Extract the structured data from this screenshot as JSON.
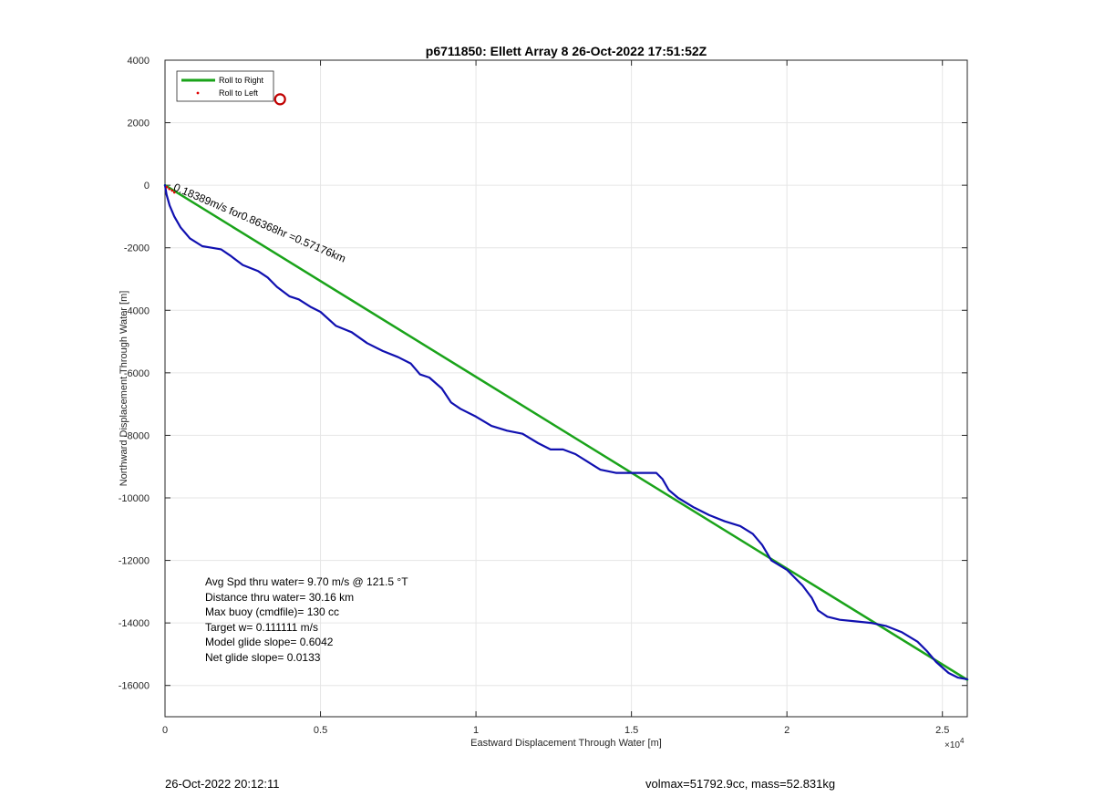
{
  "chart_data": {
    "type": "line",
    "title": "p6711850: Ellett Array 8 26-Oct-2022 17:51:52Z",
    "xlabel": "Eastward Displacement Through Water [m]",
    "ylabel": "Northward Displacement Through Water [m]",
    "xlim": [
      0,
      25800
    ],
    "ylim": [
      -17000,
      4000
    ],
    "x_exponent_label": "×10",
    "x_exponent_power": "4",
    "x_ticks": [
      {
        "value": 0,
        "label": "0"
      },
      {
        "value": 5000,
        "label": "0.5"
      },
      {
        "value": 10000,
        "label": "1"
      },
      {
        "value": 15000,
        "label": "1.5"
      },
      {
        "value": 20000,
        "label": "2"
      },
      {
        "value": 25000,
        "label": "2.5"
      }
    ],
    "y_ticks": [
      {
        "value": 4000,
        "label": "4000"
      },
      {
        "value": 2000,
        "label": "2000"
      },
      {
        "value": 0,
        "label": "0"
      },
      {
        "value": -2000,
        "label": "-2000"
      },
      {
        "value": -4000,
        "label": "-4000"
      },
      {
        "value": -6000,
        "label": "-6000"
      },
      {
        "value": -8000,
        "label": "-8000"
      },
      {
        "value": -10000,
        "label": "-10000"
      },
      {
        "value": -12000,
        "label": "-12000"
      },
      {
        "value": -14000,
        "label": "-14000"
      },
      {
        "value": -16000,
        "label": "-16000"
      }
    ],
    "grid": true,
    "legend_position": "top-left",
    "series": [
      {
        "name": "Roll to Right",
        "color": "#1aa31a",
        "style": "line",
        "x": [
          0,
          25800
        ],
        "y": [
          0,
          -15820
        ]
      },
      {
        "name": "Roll to Left",
        "color": "#e00000",
        "style": "marker",
        "x": [],
        "y": []
      },
      {
        "name": "",
        "color": "#1010b0",
        "style": "line",
        "x": [
          0,
          50,
          150,
          300,
          500,
          800,
          1200,
          1500,
          1800,
          2100,
          2500,
          3000,
          3300,
          3600,
          4000,
          4300,
          4700,
          5000,
          5500,
          6000,
          6500,
          7000,
          7500,
          7900,
          8200,
          8500,
          8900,
          9200,
          9500,
          10000,
          10500,
          11000,
          11500,
          12000,
          12400,
          12800,
          13200,
          13600,
          14000,
          14500,
          15000,
          15500,
          15800,
          16000,
          16200,
          16500,
          17000,
          17500,
          18000,
          18500,
          18900,
          19200,
          19500,
          20000,
          20500,
          20800,
          21000,
          21300,
          21700,
          22200,
          22700,
          23200,
          23700,
          24200,
          24500,
          24800,
          25200,
          25500,
          25800
        ],
        "y": [
          0,
          -300,
          -650,
          -1000,
          -1350,
          -1700,
          -1950,
          -2000,
          -2050,
          -2250,
          -2550,
          -2750,
          -2950,
          -3250,
          -3550,
          -3650,
          -3900,
          -4050,
          -4500,
          -4700,
          -5050,
          -5300,
          -5500,
          -5700,
          -6050,
          -6150,
          -6500,
          -6950,
          -7150,
          -7400,
          -7700,
          -7850,
          -7950,
          -8250,
          -8450,
          -8450,
          -8600,
          -8850,
          -9100,
          -9200,
          -9200,
          -9200,
          -9200,
          -9400,
          -9750,
          -10000,
          -10300,
          -10550,
          -10750,
          -10900,
          -11150,
          -11500,
          -12000,
          -12300,
          -12800,
          -13200,
          -13600,
          -13800,
          -13900,
          -13950,
          -14000,
          -14100,
          -14300,
          -14600,
          -14900,
          -15250,
          -15600,
          -15750,
          -15800
        ]
      }
    ],
    "circle_marker": {
      "x": 3700,
      "y": 2750,
      "color": "#c00000"
    },
    "annotations": [
      {
        "text": "0.18389m/s for0.86368hr =0.57176km",
        "x": 250,
        "y": -150,
        "angle": 23
      }
    ],
    "stats": [
      "Avg Spd thru water=  9.70 m/s @ 121.5 °T",
      "Distance thru water= 30.16 km",
      "Max buoy (cmdfile)= 130 cc",
      "Target w= 0.111111 m/s",
      "Model glide slope= 0.6042",
      "Net glide slope= 0.0133"
    ]
  },
  "footer": {
    "timestamp": "26-Oct-2022 20:12:11",
    "info": "volmax=51792.9cc, mass=52.831kg"
  }
}
